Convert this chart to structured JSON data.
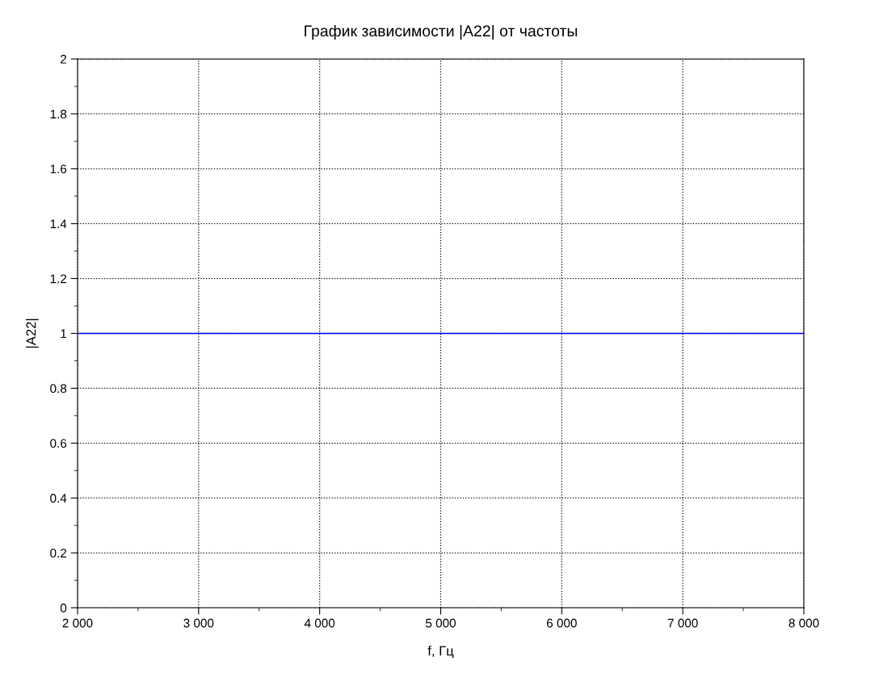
{
  "chart_data": {
    "type": "line",
    "title": "График зависимости |A22| от частоты",
    "xlabel": "f, Гц",
    "ylabel": "|A22|",
    "x": [
      2000,
      8000
    ],
    "series": [
      {
        "color": "#0000ff",
        "values": [
          1,
          1
        ]
      }
    ],
    "xlim": [
      2000,
      8000
    ],
    "xticks": [
      {
        "value": 2000,
        "label": "2 000"
      },
      {
        "value": 3000,
        "label": "3 000"
      },
      {
        "value": 4000,
        "label": "4 000"
      },
      {
        "value": 5000,
        "label": "5 000"
      },
      {
        "value": 6000,
        "label": "6 000"
      },
      {
        "value": 7000,
        "label": "7 000"
      },
      {
        "value": 8000,
        "label": "8 000"
      }
    ],
    "ylim": [
      0,
      2
    ],
    "yticks": [
      0,
      0.2,
      0.4,
      0.6,
      0.8,
      1,
      1.2,
      1.4,
      1.6,
      1.8,
      2
    ],
    "grid": true,
    "legend": false,
    "marker": "none",
    "line_style": "solid"
  }
}
